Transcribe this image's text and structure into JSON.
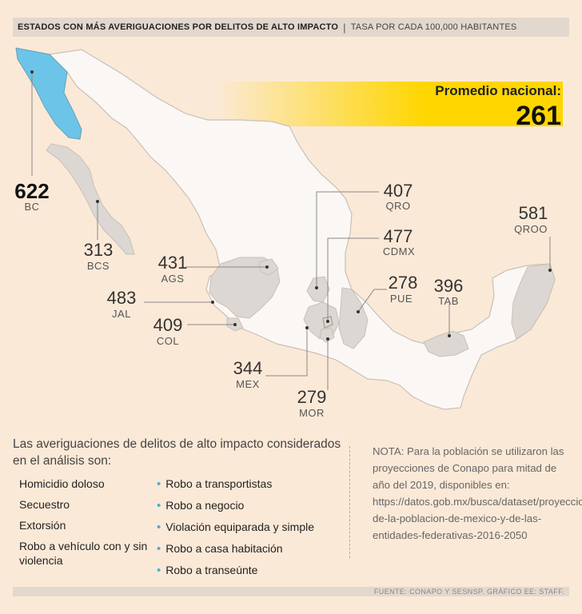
{
  "header": {
    "title": "ESTADOS CON MÁS AVERIGUACIONES POR DELITOS DE ALTO IMPACTO",
    "subtitle": "TASA POR CADA 100,000 HABITANTES"
  },
  "average": {
    "label": "Promedio nacional:",
    "value": "261"
  },
  "states": [
    {
      "code": "BC",
      "value": "622",
      "highlight": true
    },
    {
      "code": "BCS",
      "value": "313"
    },
    {
      "code": "AGS",
      "value": "431"
    },
    {
      "code": "JAL",
      "value": "483"
    },
    {
      "code": "COL",
      "value": "409"
    },
    {
      "code": "MEX",
      "value": "344"
    },
    {
      "code": "MOR",
      "value": "279"
    },
    {
      "code": "QRO",
      "value": "407"
    },
    {
      "code": "CDMX",
      "value": "477"
    },
    {
      "code": "PUE",
      "value": "278"
    },
    {
      "code": "TAB",
      "value": "396"
    },
    {
      "code": "QROO",
      "value": "581"
    }
  ],
  "colors": {
    "highlight": "#6cc5e8",
    "above_average": "#dcd7d3",
    "base": "#faf7f5",
    "bar": "#ffd600"
  },
  "intro": "Las averiguaciones de delitos de alto impacto considerados en el análisis son:",
  "crimes_col1": [
    "Homicidio doloso",
    "Secuestro",
    "Extorsión",
    "Robo a vehículo con y sin violencia"
  ],
  "crimes_col2": [
    "Robo a transportistas",
    "Robo a negocio",
    "Violación equiparada y simple",
    "Robo a casa habitación",
    "Robo a transeúnte"
  ],
  "note": "NOTA: Para la población se utilizaron las proyecciones de Conapo para mitad de año del 2019, disponibles en: https://datos.gob.mx/busca/dataset/proyecciones-de-la-poblacion-de-mexico-y-de-las-entidades-federativas-2016-2050",
  "footer": "FUENTE: CONAPO Y SESNSP. GRÁFICO EE: STAFF."
}
